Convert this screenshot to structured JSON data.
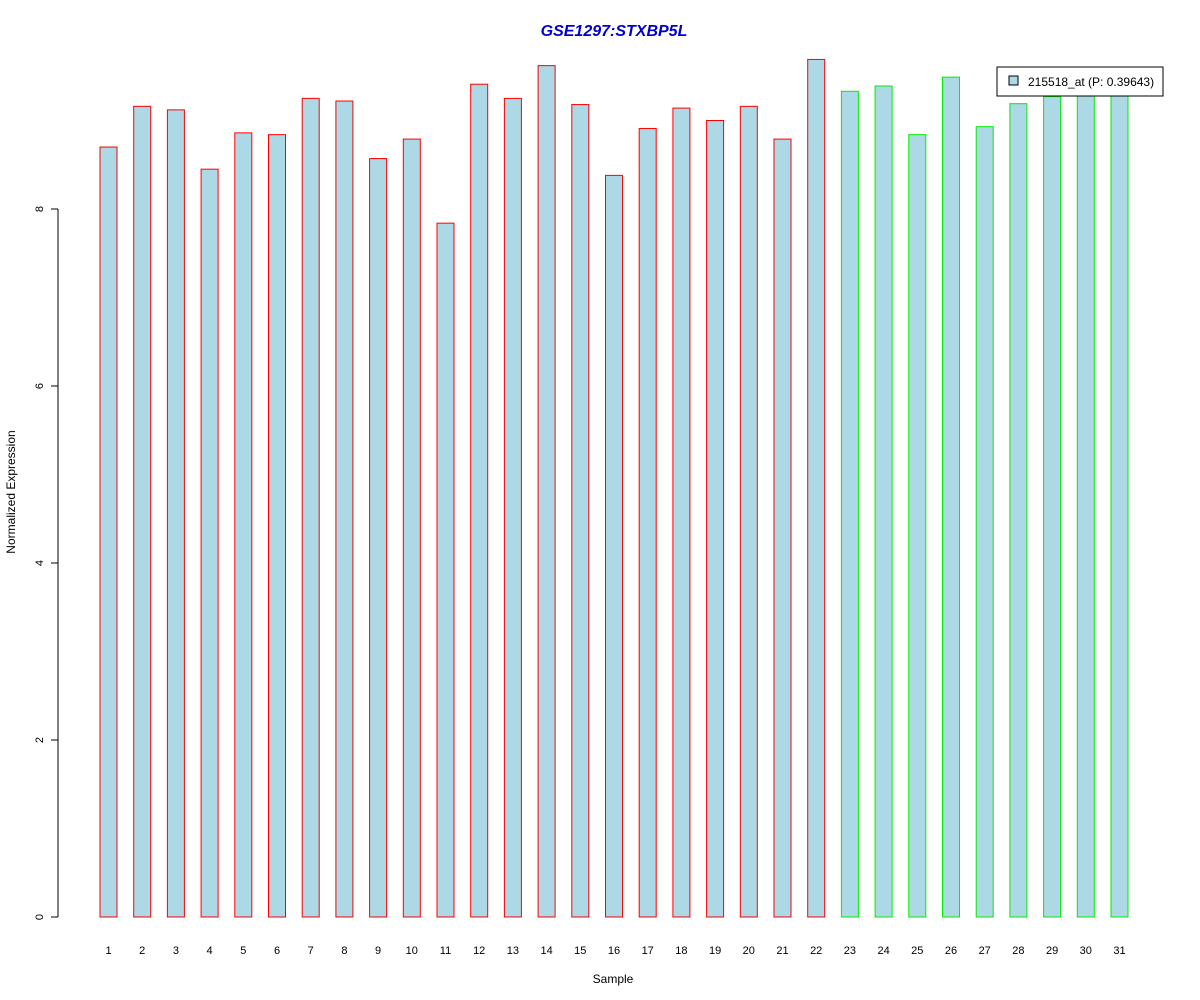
{
  "chart_data": {
    "type": "bar",
    "title": "GSE1297:STXBP5L",
    "xlabel": "Sample",
    "ylabel": "Normalized Expression",
    "ylim": [
      0,
      9.8
    ],
    "yticks": [
      0,
      2,
      4,
      6,
      8
    ],
    "categories": [
      "1",
      "2",
      "3",
      "4",
      "5",
      "6",
      "7",
      "8",
      "9",
      "10",
      "11",
      "12",
      "13",
      "14",
      "15",
      "16",
      "17",
      "18",
      "19",
      "20",
      "21",
      "22",
      "23",
      "24",
      "25",
      "26",
      "27",
      "28",
      "29",
      "30",
      "31"
    ],
    "series": [
      {
        "name": "215518_at (P: 0.39643)",
        "values": [
          8.7,
          9.16,
          9.12,
          8.45,
          8.86,
          8.84,
          9.25,
          9.22,
          8.57,
          8.79,
          7.84,
          9.41,
          9.25,
          9.62,
          9.18,
          8.38,
          8.91,
          9.14,
          9.0,
          9.16,
          8.79,
          9.69,
          9.33,
          9.39,
          8.84,
          9.49,
          8.93,
          9.19,
          9.27,
          9.3,
          9.3
        ],
        "fill": "#add8e6"
      }
    ],
    "groups": [
      {
        "from": 1,
        "to": 22,
        "border": "#ff0000"
      },
      {
        "from": 23,
        "to": 31,
        "border": "#00ee00"
      }
    ],
    "legend": {
      "position": "top-right",
      "label": "215518_at (P: 0.39643)"
    },
    "grid": false
  }
}
